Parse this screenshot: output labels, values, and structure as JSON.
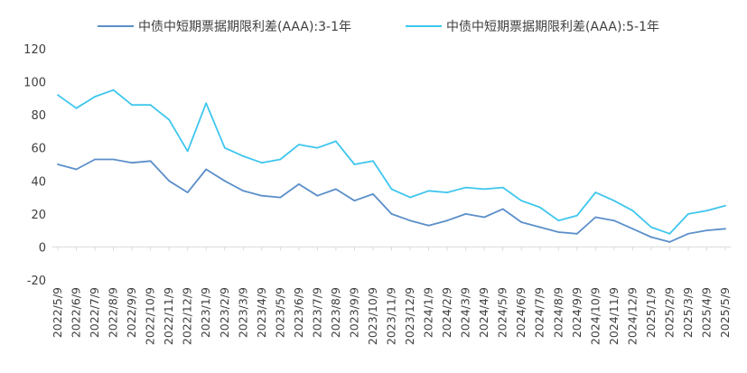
{
  "chart_data": {
    "type": "line",
    "title": "",
    "xlabel": "",
    "ylabel": "",
    "ylim": [
      -20,
      120
    ],
    "y_ticks": [
      -20,
      0,
      20,
      40,
      60,
      80,
      100,
      120
    ],
    "grid": false,
    "legend_position": "top",
    "x": [
      "2022/5/9",
      "2022/6/9",
      "2022/7/9",
      "2022/8/9",
      "2022/9/9",
      "2022/10/9",
      "2022/11/9",
      "2022/12/9",
      "2023/1/9",
      "2023/2/9",
      "2023/3/9",
      "2023/4/9",
      "2023/5/9",
      "2023/6/9",
      "2023/7/9",
      "2023/8/9",
      "2023/9/9",
      "2023/10/9",
      "2023/11/9",
      "2023/12/9",
      "2024/1/9",
      "2024/2/9",
      "2024/3/9",
      "2024/4/9",
      "2024/5/9",
      "2024/6/9",
      "2024/7/9",
      "2024/8/9",
      "2024/9/9",
      "2024/10/9",
      "2024/11/9",
      "2024/12/9",
      "2025/1/9",
      "2025/2/9",
      "2025/3/9",
      "2025/4/9",
      "2025/5/9"
    ],
    "series": [
      {
        "name": "中债中短期票据期限利差(AAA):3-1年",
        "color": "#5B8FC9",
        "values": [
          50,
          47,
          53,
          53,
          51,
          52,
          40,
          33,
          47,
          40,
          34,
          31,
          30,
          38,
          31,
          35,
          28,
          32,
          20,
          16,
          13,
          16,
          20,
          18,
          23,
          15,
          12,
          9,
          8,
          18,
          16,
          11,
          6,
          3,
          8,
          10,
          11
        ]
      },
      {
        "name": "中债中短期票据期限利差(AAA):5-1年",
        "color": "#3EC6EE",
        "values": [
          92,
          84,
          91,
          95,
          86,
          86,
          77,
          58,
          87,
          60,
          55,
          51,
          53,
          62,
          60,
          64,
          50,
          52,
          35,
          30,
          34,
          33,
          36,
          35,
          36,
          28,
          24,
          16,
          19,
          33,
          28,
          22,
          12,
          8,
          20,
          22,
          25
        ]
      }
    ]
  }
}
